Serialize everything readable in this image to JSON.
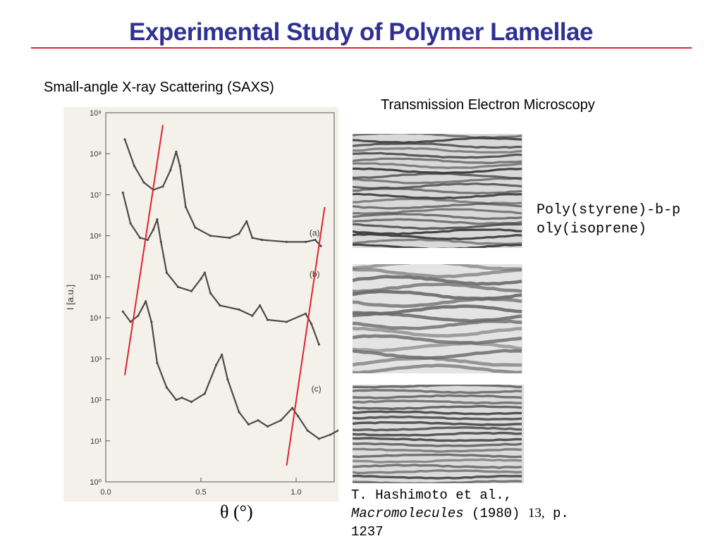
{
  "slide": {
    "title": "Experimental Study of Polymer Lamellae",
    "saxs_heading": "Small-angle X-ray Scattering (SAXS)",
    "tem_heading": "Transmission Electron Microscopy",
    "polymer_label": "Poly(styrene)-b-poly(isoprene)",
    "x_axis_label": "θ (°)",
    "reference": {
      "authors": "T. Hashimoto et al.,",
      "journal": "Macromolecules",
      "year": "(1980)",
      "volume": "13,",
      "page": "p. 1237"
    },
    "colors": {
      "title": "#2e3192",
      "rule": "#e0232b",
      "guide_lines": "#e0232b",
      "curve": "#4a4a4a"
    }
  },
  "chart_data": {
    "type": "line",
    "title": "",
    "xlabel": "θ (°)",
    "ylabel": "I [a.u.]",
    "xlim": [
      0.0,
      1.2
    ],
    "ylim_log10": [
      0,
      9
    ],
    "y_scale": "log",
    "x_ticks": [
      "0.0",
      "0.5",
      "1.0"
    ],
    "y_ticks": [
      "10⁰",
      "10¹",
      "10²",
      "10³",
      "10⁴",
      "10⁵",
      "10⁶",
      "10⁷",
      "10⁸",
      "10⁹"
    ],
    "series": [
      {
        "name": "(a)",
        "points": [
          [
            0.1,
            8.35
          ],
          [
            0.15,
            7.7
          ],
          [
            0.2,
            7.3
          ],
          [
            0.25,
            7.12
          ],
          [
            0.3,
            7.2
          ],
          [
            0.34,
            7.6
          ],
          [
            0.37,
            8.05
          ],
          [
            0.39,
            7.7
          ],
          [
            0.42,
            6.7
          ],
          [
            0.47,
            6.2
          ],
          [
            0.55,
            6.0
          ],
          [
            0.65,
            5.95
          ],
          [
            0.7,
            6.05
          ],
          [
            0.74,
            6.35
          ],
          [
            0.77,
            5.95
          ],
          [
            0.82,
            5.9
          ],
          [
            0.95,
            5.85
          ],
          [
            1.05,
            5.85
          ],
          [
            1.1,
            5.9
          ],
          [
            1.13,
            5.75
          ]
        ]
      },
      {
        "name": "(b)",
        "points": [
          [
            0.09,
            7.05
          ],
          [
            0.13,
            6.3
          ],
          [
            0.18,
            5.95
          ],
          [
            0.22,
            5.9
          ],
          [
            0.25,
            6.15
          ],
          [
            0.27,
            6.4
          ],
          [
            0.29,
            5.85
          ],
          [
            0.32,
            5.1
          ],
          [
            0.38,
            4.75
          ],
          [
            0.45,
            4.65
          ],
          [
            0.5,
            4.95
          ],
          [
            0.52,
            5.1
          ],
          [
            0.55,
            4.6
          ],
          [
            0.6,
            4.3
          ],
          [
            0.7,
            4.2
          ],
          [
            0.77,
            4.05
          ],
          [
            0.81,
            4.3
          ],
          [
            0.85,
            3.95
          ],
          [
            0.95,
            3.9
          ],
          [
            1.05,
            4.1
          ],
          [
            1.08,
            3.85
          ],
          [
            1.12,
            3.35
          ]
        ]
      },
      {
        "name": "(c)",
        "points": [
          [
            0.09,
            4.15
          ],
          [
            0.13,
            3.9
          ],
          [
            0.17,
            4.05
          ],
          [
            0.21,
            4.4
          ],
          [
            0.24,
            3.9
          ],
          [
            0.27,
            2.9
          ],
          [
            0.32,
            2.3
          ],
          [
            0.37,
            2.0
          ],
          [
            0.4,
            2.05
          ],
          [
            0.45,
            1.95
          ],
          [
            0.52,
            2.15
          ],
          [
            0.58,
            2.85
          ],
          [
            0.61,
            3.1
          ],
          [
            0.64,
            2.5
          ],
          [
            0.7,
            1.7
          ],
          [
            0.75,
            1.4
          ],
          [
            0.8,
            1.5
          ],
          [
            0.85,
            1.35
          ],
          [
            0.92,
            1.5
          ],
          [
            0.98,
            1.8
          ],
          [
            1.01,
            1.6
          ],
          [
            1.06,
            1.25
          ],
          [
            1.12,
            1.05
          ],
          [
            1.18,
            1.15
          ],
          [
            1.22,
            1.25
          ]
        ]
      }
    ],
    "guide_lines": [
      {
        "x1": 0.3,
        "y1_log10": 8.7,
        "x2": 0.1,
        "y2_log10": 2.6
      },
      {
        "x1": 1.15,
        "y1_log10": 6.7,
        "x2": 0.95,
        "y2_log10": 0.4
      }
    ]
  }
}
